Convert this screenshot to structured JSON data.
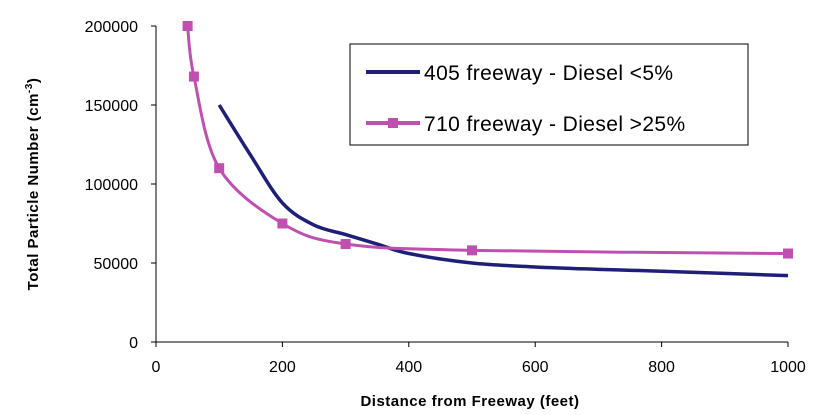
{
  "chart_data": {
    "type": "line",
    "xlabel": "Distance from Freeway (feet)",
    "ylabel_main": "Total Particle Number (cm",
    "ylabel_sup": "-3",
    "ylabel_close": ")",
    "xlim": [
      0,
      1000
    ],
    "ylim": [
      0,
      200000
    ],
    "x_ticks": [
      0,
      200,
      400,
      600,
      800,
      1000
    ],
    "y_ticks": [
      0,
      50000,
      100000,
      150000,
      200000
    ],
    "grid": false,
    "legend_position": "top-right",
    "series": [
      {
        "name": "405 freeway - Diesel <5%",
        "color": "#1f1f7a",
        "marker": "none",
        "x": [
          100,
          150,
          200,
          250,
          300,
          350,
          400,
          500,
          600,
          700,
          800,
          1000
        ],
        "y": [
          150000,
          118000,
          88000,
          74000,
          68000,
          62000,
          56000,
          50000,
          47500,
          46000,
          44800,
          42000
        ]
      },
      {
        "name": "710 freeway - Diesel >25%",
        "color": "#c050b0",
        "marker": "square",
        "x": [
          50,
          60,
          100,
          200,
          300,
          500,
          1000
        ],
        "y": [
          200000,
          168000,
          110000,
          75000,
          62000,
          58000,
          56000
        ]
      }
    ]
  }
}
